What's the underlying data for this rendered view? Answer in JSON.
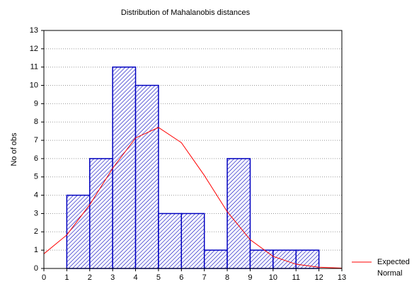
{
  "chart_data": {
    "type": "histogram",
    "title": "Distribution of Mahalanobis distances",
    "ylabel": "No of obs",
    "bins": [
      0,
      1,
      2,
      3,
      4,
      5,
      6,
      7,
      8,
      9,
      10,
      11,
      12
    ],
    "counts": [
      0,
      4,
      6,
      11,
      10,
      3,
      3,
      1,
      6,
      1,
      1,
      1
    ],
    "color": "#0000c0",
    "xlim": [
      0,
      13
    ],
    "ylim": [
      0,
      13
    ],
    "xticks": [
      0,
      1,
      2,
      3,
      4,
      5,
      6,
      7,
      8,
      9,
      10,
      11,
      12,
      13
    ],
    "yticks": [
      0,
      1,
      2,
      3,
      4,
      5,
      6,
      7,
      8,
      9,
      10,
      11,
      12,
      13
    ],
    "grid": true,
    "legend": "right",
    "series": [
      {
        "name": "Expected Normal",
        "color": "#ff0000",
        "x": [
          0,
          1,
          2,
          3,
          4,
          5,
          6,
          7,
          8,
          9,
          10,
          11,
          12,
          13
        ],
        "values": [
          0.8,
          1.83,
          3.48,
          5.47,
          7.13,
          7.7,
          6.87,
          5.08,
          3.1,
          1.57,
          0.66,
          0.23,
          0.07,
          0.02
        ]
      }
    ]
  }
}
